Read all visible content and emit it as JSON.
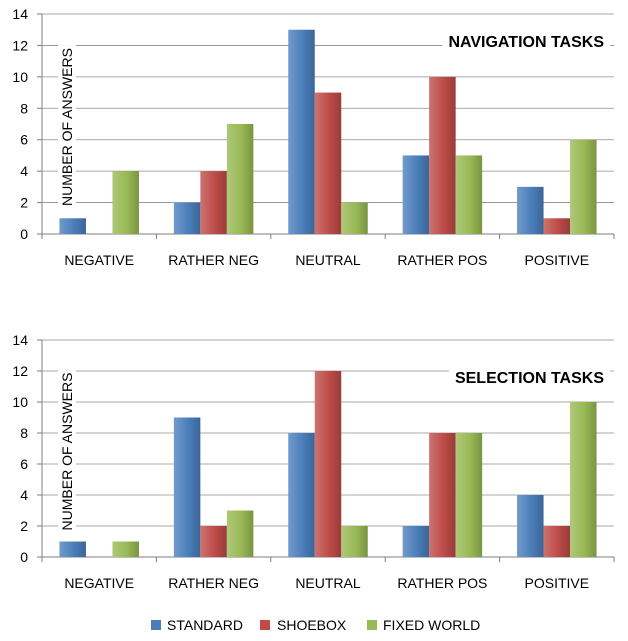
{
  "legend": {
    "items": [
      {
        "label": "STANDARD",
        "color": "#4a7ebb"
      },
      {
        "label": "SHOEBOX",
        "color": "#be4b48"
      },
      {
        "label": "FIXED WORLD",
        "color": "#98b954"
      }
    ]
  },
  "chart_data": [
    {
      "type": "bar",
      "title": "NAVIGATION TASKS",
      "ylabel": "NUMBER OF ANSWERS",
      "xlabel": "",
      "categories": [
        "NEGATIVE",
        "RATHER NEG",
        "NEUTRAL",
        "RATHER POS",
        "POSITIVE"
      ],
      "ylim": [
        0,
        14
      ],
      "yticks": [
        0,
        2,
        4,
        6,
        8,
        10,
        12,
        14
      ],
      "grid": true,
      "series": [
        {
          "name": "STANDARD",
          "values": [
            1,
            2,
            13,
            5,
            3
          ]
        },
        {
          "name": "SHOEBOX",
          "values": [
            0,
            4,
            9,
            10,
            1
          ]
        },
        {
          "name": "FIXED WORLD",
          "values": [
            4,
            7,
            2,
            5,
            6
          ]
        }
      ]
    },
    {
      "type": "bar",
      "title": "SELECTION TASKS",
      "ylabel": "NUMBER OF ANSWERS",
      "xlabel": "",
      "categories": [
        "NEGATIVE",
        "RATHER NEG",
        "NEUTRAL",
        "RATHER POS",
        "POSITIVE"
      ],
      "ylim": [
        0,
        14
      ],
      "yticks": [
        0,
        2,
        4,
        6,
        8,
        10,
        12,
        14
      ],
      "grid": true,
      "series": [
        {
          "name": "STANDARD",
          "values": [
            1,
            9,
            8,
            2,
            4
          ]
        },
        {
          "name": "SHOEBOX",
          "values": [
            0,
            2,
            12,
            8,
            2
          ]
        },
        {
          "name": "FIXED WORLD",
          "values": [
            1,
            3,
            2,
            8,
            10
          ]
        }
      ]
    }
  ]
}
